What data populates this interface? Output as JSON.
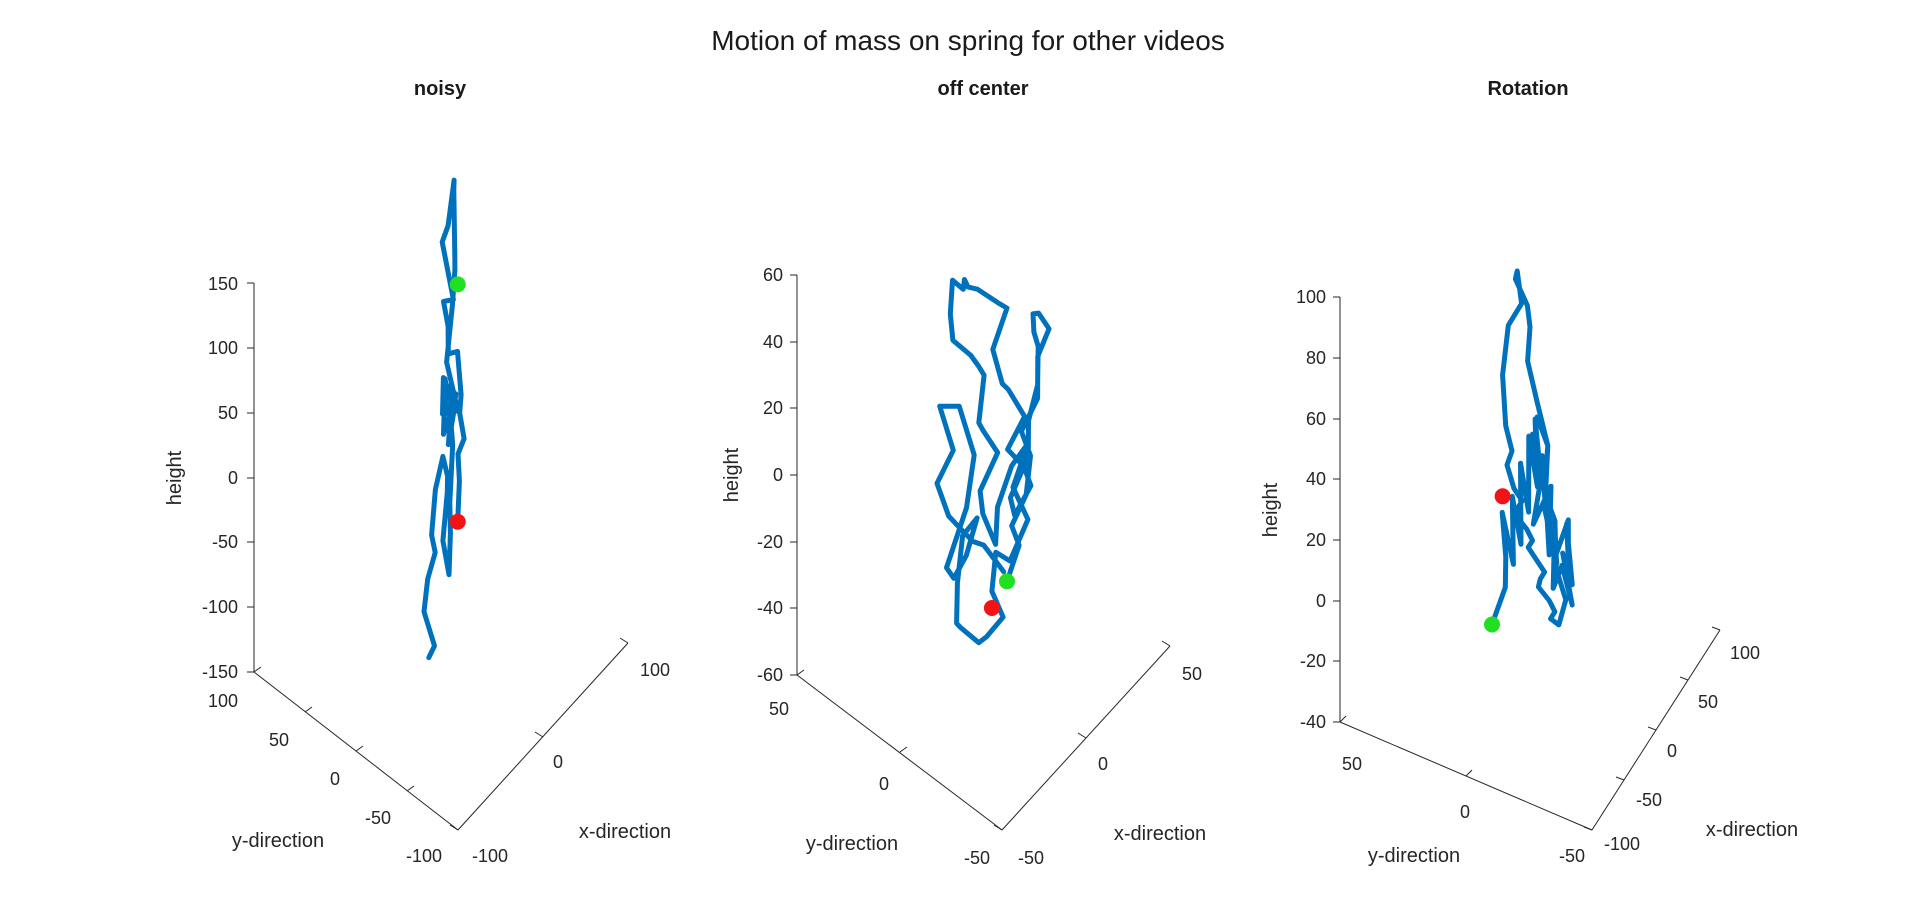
{
  "figure": {
    "suptitle": "Motion of mass on spring for other videos",
    "colors": {
      "trajectory": "#0072BD",
      "start_marker": "#21E021",
      "end_marker": "#F21414",
      "axis": "#262626",
      "text": "#1a1a1a"
    }
  },
  "chart_data": [
    {
      "type": "line",
      "projection": "3d",
      "title": "noisy",
      "xlabel": "x-direction",
      "ylabel": "y-direction",
      "zlabel": "height",
      "xlim": [
        -100,
        100
      ],
      "ylim": [
        -100,
        100
      ],
      "zlim": [
        -150,
        150
      ],
      "xticks": [
        "-100",
        "0",
        "100"
      ],
      "yticks": [
        "-100",
        "-50",
        "0",
        "50",
        "100"
      ],
      "zticks": [
        "-150",
        "-100",
        "-50",
        "0",
        "50",
        "100",
        "150"
      ],
      "grid": false,
      "series": [
        {
          "x": [
            -6,
            -4,
            -8,
            -6,
            -2,
            -5,
            -3,
            1,
            3,
            5,
            1,
            7,
            5,
            8,
            9,
            7,
            12,
            11,
            14,
            10,
            3,
            8,
            3,
            6,
            10,
            9,
            14,
            13,
            16,
            12,
            9,
            6,
            11,
            14,
            15,
            15,
            13,
            6,
            5,
            11,
            9,
            12,
            11,
            17,
            20,
            16,
            20,
            14,
            18,
            16
          ],
          "y": [
            7,
            3,
            10,
            8,
            4,
            5,
            3,
            -1,
            -4,
            -2,
            -1,
            -2,
            -5,
            -2,
            -4,
            -1,
            -3,
            2,
            1,
            6,
            1,
            -3,
            0,
            1,
            -1,
            0,
            -3,
            3,
            -4,
            -5,
            2,
            -3,
            -2,
            -2,
            -1,
            0,
            -2,
            -2,
            3,
            -3,
            5,
            3,
            2,
            -2,
            -3,
            -5,
            -6,
            -5,
            -3,
            -3
          ],
          "z": [
            -150,
            -140,
            -115,
            -90,
            -70,
            -55,
            -20,
            5,
            -10,
            -25,
            -60,
            -90,
            -55,
            -35,
            10,
            55,
            35,
            5,
            12,
            55,
            35,
            35,
            20,
            60,
            30,
            10,
            45,
            38,
            30,
            40,
            70,
            95,
            115,
            140,
            150,
            200,
            210,
            180,
            165,
            120,
            115,
            95,
            75,
            75,
            40,
            30,
            8,
            0,
            -25,
            -55
          ]
        }
      ],
      "markers": [
        {
          "label": "start",
          "x": 16,
          "y": -3,
          "z": 128
        },
        {
          "label": "end",
          "x": 16,
          "y": -3,
          "z": -55
        }
      ]
    },
    {
      "type": "line",
      "projection": "3d",
      "title": "off center",
      "xlabel": "x-direction",
      "ylabel": "y-direction",
      "zlabel": "height",
      "xlim": [
        -50,
        50
      ],
      "ylim": [
        -50,
        50
      ],
      "zlim": [
        -60,
        60
      ],
      "xticks": [
        "-50",
        "0",
        "50"
      ],
      "yticks": [
        "-50",
        "0",
        "50"
      ],
      "zticks": [
        "-60",
        "-40",
        "-20",
        "0",
        "20",
        "40",
        "60"
      ],
      "grid": false,
      "series": [
        {
          "x": [
            12,
            5,
            -5,
            -15,
            -22,
            -24,
            -18,
            -20,
            -12,
            -8,
            -15,
            -22,
            -14,
            -9,
            -5,
            -10,
            -18,
            -16,
            -10,
            -4,
            3,
            8,
            5,
            11,
            17,
            24,
            20,
            26,
            23,
            18,
            12,
            6,
            2,
            -2,
            6,
            1,
            -4,
            4,
            -3,
            -10,
            -17,
            -21,
            -16,
            -12,
            -15,
            -8,
            0,
            6,
            14,
            8,
            10,
            16,
            22,
            18,
            24,
            27,
            21,
            16,
            23,
            28,
            31,
            35,
            30,
            27,
            34,
            39,
            36,
            31,
            25,
            28,
            23,
            18,
            20,
            14
          ],
          "y": [
            0,
            4,
            1,
            -3,
            -1,
            3,
            0,
            5,
            2,
            -2,
            -4,
            0,
            3,
            1,
            -1,
            2,
            -2,
            0,
            3,
            -1,
            1,
            -3,
            0,
            3,
            1,
            -2,
            2,
            0,
            -3,
            1,
            3,
            -1,
            2,
            0,
            -2,
            1,
            -1,
            3,
            0,
            -2,
            1,
            -1,
            2,
            0,
            -3,
            1,
            3,
            -2,
            0,
            2,
            -1,
            1,
            -2,
            3,
            0,
            -1,
            2,
            0,
            -3,
            1,
            -1,
            2,
            0,
            -2,
            1,
            0,
            3,
            -1,
            2,
            0,
            -2,
            1,
            -1,
            0
          ],
          "z": [
            -40,
            -30,
            -22,
            -12,
            -4,
            5,
            13,
            25,
            22,
            7,
            -4,
            -20,
            -29,
            -24,
            -14,
            -18,
            -26,
            -40,
            -46,
            -52,
            -55,
            -50,
            -42,
            -35,
            -40,
            -30,
            -20,
            -10,
            -6,
            -12,
            -22,
            -28,
            -18,
            -8,
            0,
            8,
            14,
            22,
            30,
            38,
            45,
            56,
            62,
            58,
            64,
            56,
            50,
            45,
            38,
            28,
            18,
            12,
            2,
            -8,
            -15,
            -22,
            -29,
            -20,
            -10,
            -4,
            6,
            14,
            22,
            30,
            25,
            18,
            10,
            2,
            -6,
            -14,
            -22,
            -30,
            -36,
            -44
          ]
        }
      ],
      "markers": [
        {
          "label": "start",
          "x": 14,
          "y": 0,
          "z": -44
        },
        {
          "label": "end",
          "x": 5,
          "y": 0,
          "z": -47
        }
      ]
    },
    {
      "type": "line",
      "projection": "3d",
      "title": "Rotation",
      "xlabel": "x-direction",
      "ylabel": "y-direction",
      "zlabel": "height",
      "xlim": [
        -100,
        100
      ],
      "ylim": [
        -50,
        50
      ],
      "zlim": [
        -40,
        100
      ],
      "xticks": [
        "-100",
        "-50",
        "0",
        "50",
        "100"
      ],
      "yticks": [
        "-50",
        "0",
        "50"
      ],
      "zticks": [
        "-40",
        "-20",
        "0",
        "20",
        "40",
        "60",
        "80",
        "100"
      ],
      "grid": false,
      "series": [
        {
          "x": [
            -20,
            -15,
            -22,
            -12,
            -18,
            -8,
            -14,
            -3,
            -10,
            2,
            -4,
            8,
            3,
            12,
            5,
            15,
            9,
            20,
            13,
            25,
            30,
            38,
            45,
            52,
            60,
            65,
            62,
            55,
            58,
            50,
            48,
            42,
            38,
            30,
            25,
            20,
            15,
            8,
            0,
            -8,
            -15,
            -20,
            -25,
            -30,
            -35,
            -38,
            -32,
            -28,
            -25,
            -20,
            -15,
            -10,
            -5,
            0,
            5,
            10,
            15,
            20,
            25,
            30,
            35,
            40,
            45,
            48,
            45,
            40,
            35,
            30,
            25,
            20,
            15
          ],
          "y": [
            10,
            6,
            4,
            8,
            2,
            5,
            0,
            3,
            -2,
            1,
            -4,
            0,
            -3,
            2,
            -5,
            -1,
            -4,
            0,
            2,
            -2,
            0,
            3,
            1,
            -2,
            0,
            2,
            -1,
            1,
            -2,
            0,
            3,
            1,
            -1,
            2,
            0,
            -2,
            1,
            3,
            0,
            -1,
            2,
            0,
            -3,
            1,
            2,
            0,
            -1,
            2,
            0,
            -2,
            1,
            3,
            0,
            -1,
            2,
            0,
            -2,
            1,
            3,
            0,
            -1,
            2,
            0,
            -2,
            1,
            0,
            -1,
            2,
            0,
            -2,
            1
          ],
          "z": [
            -20,
            -8,
            5,
            15,
            2,
            20,
            8,
            30,
            18,
            38,
            25,
            42,
            30,
            35,
            20,
            28,
            12,
            22,
            5,
            15,
            -10,
            0,
            -15,
            -5,
            -22,
            -12,
            -30,
            -18,
            -35,
            -20,
            -28,
            -8,
            -15,
            5,
            15,
            30,
            45,
            60,
            75,
            85,
            95,
            100,
            92,
            85,
            70,
            55,
            45,
            38,
            30,
            25,
            20,
            15,
            10,
            5,
            0,
            -5,
            -10,
            -15,
            -20,
            -25,
            -30,
            -35,
            -38,
            -30,
            -20,
            -10,
            0,
            10,
            20,
            30,
            40
          ]
        }
      ],
      "markers": [
        {
          "label": "start",
          "x": -20,
          "y": 10,
          "z": -20
        },
        {
          "label": "end",
          "x": -35,
          "y": 2,
          "z": 30
        }
      ]
    }
  ]
}
